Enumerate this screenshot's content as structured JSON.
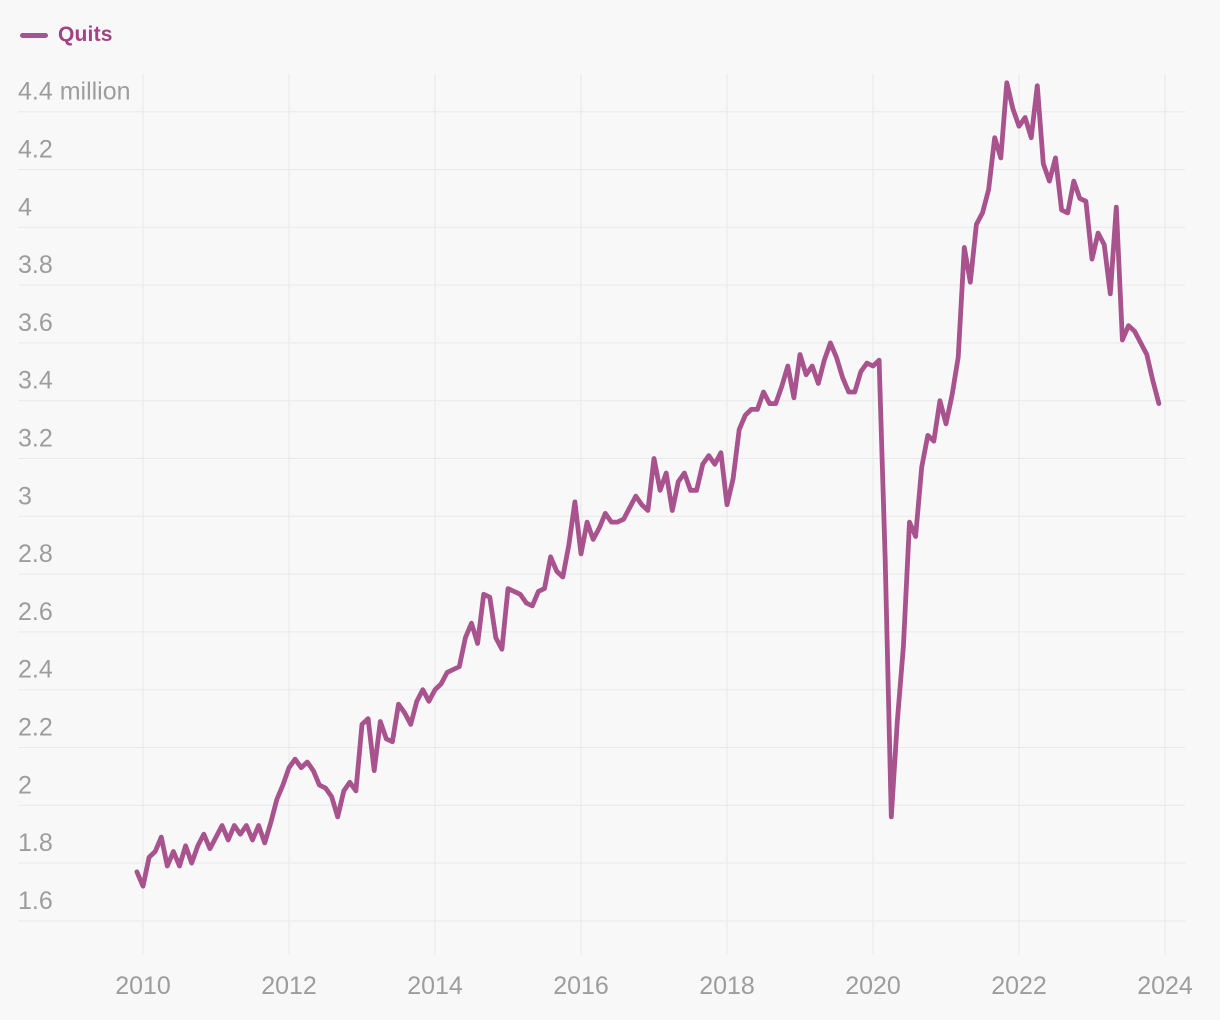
{
  "legend": {
    "label": "Quits"
  },
  "colors": {
    "background": "#f8f8f8",
    "gridline": "#e9e9e9",
    "axis_label": "#9d9d9d",
    "line": "#a8538d",
    "legend_text": "#a34184"
  },
  "chart_data": {
    "type": "line",
    "title": "",
    "unit": "million",
    "xlabel": "",
    "ylabel": "",
    "grid": "on",
    "legend_position": "top-left",
    "x_range_years": [
      2009.75,
      2024.25
    ],
    "ylim": [
      1.6,
      4.5
    ],
    "x_ticks": [
      {
        "year": 2010,
        "label": "2010"
      },
      {
        "year": 2012,
        "label": "2012"
      },
      {
        "year": 2014,
        "label": "2014"
      },
      {
        "year": 2016,
        "label": "2016"
      },
      {
        "year": 2018,
        "label": "2018"
      },
      {
        "year": 2020,
        "label": "2020"
      },
      {
        "year": 2022,
        "label": "2022"
      },
      {
        "year": 2024,
        "label": "2024"
      }
    ],
    "y_ticks": [
      {
        "value": 4.4,
        "label": "4.4 million"
      },
      {
        "value": 4.2,
        "label": "4.2"
      },
      {
        "value": 4.0,
        "label": "4"
      },
      {
        "value": 3.8,
        "label": "3.8"
      },
      {
        "value": 3.6,
        "label": "3.6"
      },
      {
        "value": 3.4,
        "label": "3.4"
      },
      {
        "value": 3.2,
        "label": "3.2"
      },
      {
        "value": 3.0,
        "label": "3"
      },
      {
        "value": 2.8,
        "label": "2.8"
      },
      {
        "value": 2.6,
        "label": "2.6"
      },
      {
        "value": 2.4,
        "label": "2.4"
      },
      {
        "value": 2.2,
        "label": "2.2"
      },
      {
        "value": 2.0,
        "label": "2"
      },
      {
        "value": 1.8,
        "label": "1.8"
      },
      {
        "value": 1.6,
        "label": "1.6"
      }
    ],
    "series": [
      {
        "name": "Quits",
        "color": "#a8538d",
        "start": "2009-12",
        "frequency": "monthly",
        "values": [
          1.77,
          1.72,
          1.82,
          1.84,
          1.89,
          1.79,
          1.84,
          1.79,
          1.86,
          1.8,
          1.86,
          1.9,
          1.85,
          1.89,
          1.93,
          1.88,
          1.93,
          1.9,
          1.93,
          1.88,
          1.93,
          1.87,
          1.94,
          2.02,
          2.07,
          2.13,
          2.16,
          2.13,
          2.15,
          2.12,
          2.07,
          2.06,
          2.03,
          1.96,
          2.05,
          2.08,
          2.05,
          2.28,
          2.3,
          2.12,
          2.29,
          2.23,
          2.22,
          2.35,
          2.32,
          2.28,
          2.36,
          2.4,
          2.36,
          2.4,
          2.42,
          2.46,
          2.47,
          2.48,
          2.58,
          2.63,
          2.56,
          2.73,
          2.72,
          2.58,
          2.54,
          2.75,
          2.74,
          2.73,
          2.7,
          2.69,
          2.74,
          2.75,
          2.86,
          2.81,
          2.79,
          2.9,
          3.05,
          2.87,
          2.98,
          2.92,
          2.96,
          3.01,
          2.98,
          2.98,
          2.99,
          3.03,
          3.07,
          3.04,
          3.02,
          3.2,
          3.09,
          3.15,
          3.02,
          3.12,
          3.15,
          3.09,
          3.09,
          3.18,
          3.21,
          3.18,
          3.22,
          3.04,
          3.13,
          3.3,
          3.35,
          3.37,
          3.37,
          3.43,
          3.39,
          3.39,
          3.45,
          3.52,
          3.41,
          3.56,
          3.49,
          3.52,
          3.46,
          3.54,
          3.6,
          3.55,
          3.48,
          3.43,
          3.43,
          3.5,
          3.53,
          3.52,
          3.54,
          2.85,
          1.96,
          2.29,
          2.55,
          2.98,
          2.93,
          3.17,
          3.28,
          3.26,
          3.4,
          3.32,
          3.42,
          3.55,
          3.93,
          3.81,
          4.01,
          4.05,
          4.13,
          4.31,
          4.24,
          4.5,
          4.41,
          4.35,
          4.38,
          4.31,
          4.49,
          4.22,
          4.16,
          4.24,
          4.06,
          4.05,
          4.16,
          4.1,
          4.09,
          3.89,
          3.98,
          3.94,
          3.77,
          4.07,
          3.61,
          3.66,
          3.64,
          3.6,
          3.56,
          3.47,
          3.39
        ]
      }
    ]
  }
}
